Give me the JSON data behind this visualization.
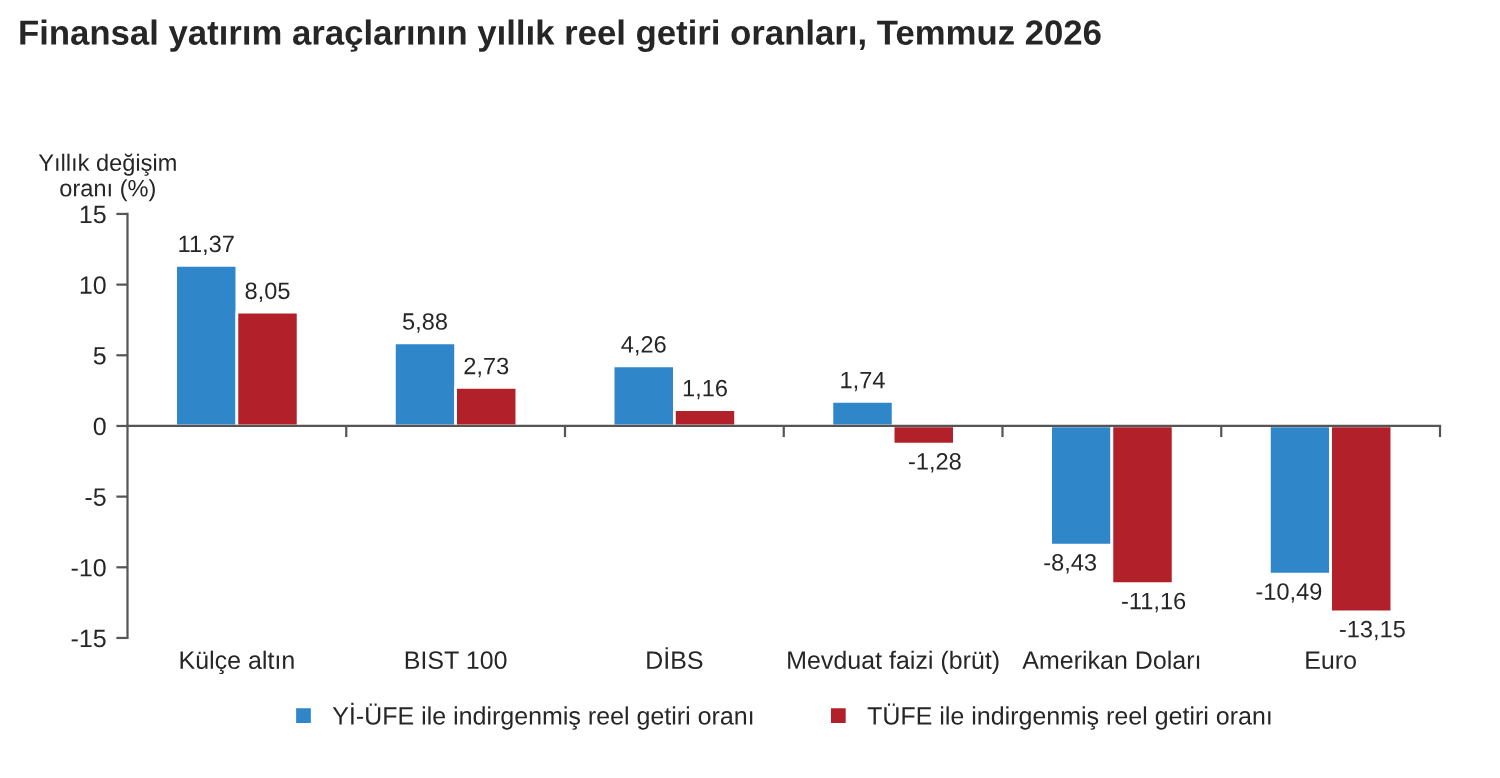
{
  "chart_data": {
    "type": "bar",
    "title": "Finansal yatırım araçlarının yıllık reel getiri oranları, Temmuz 2026",
    "ylabel": "Yıllık değişim\noranı (%)",
    "categories": [
      "Külçe altın",
      "BIST 100",
      "DİBS",
      "Mevduat faizi (brüt)",
      "Amerikan Doları",
      "Euro"
    ],
    "series": [
      {
        "name": "Yİ-ÜFE ile indirgenmiş reel getiri oranı",
        "color": "#2f86c9",
        "values": [
          11.37,
          5.88,
          4.26,
          1.74,
          -8.43,
          -10.49
        ],
        "value_labels": [
          "11,37",
          "5,88",
          "4,26",
          "1,74",
          "-8,43",
          "-10,49"
        ]
      },
      {
        "name": "TÜFE ile indirgenmiş reel getiri oranı",
        "color": "#b2202a",
        "values": [
          8.05,
          2.73,
          1.16,
          -1.28,
          -11.16,
          -13.15
        ],
        "value_labels": [
          "8,05",
          "2,73",
          "1,16",
          "-1,28",
          "-11,16",
          "-13,15"
        ]
      }
    ],
    "ylim": [
      -15,
      15
    ],
    "yticks": [
      -15,
      -10,
      -5,
      0,
      5,
      10,
      15
    ],
    "legend": "bottom"
  }
}
